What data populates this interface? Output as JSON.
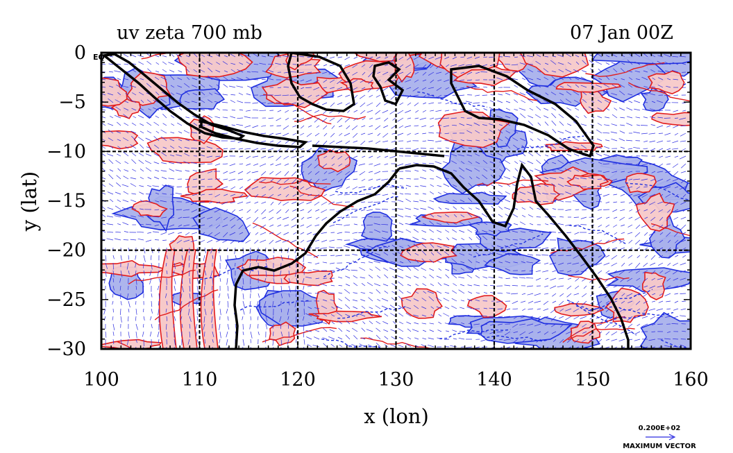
{
  "header": {
    "title": "uv zeta 700 mb",
    "time": "07 Jan 00Z"
  },
  "axes": {
    "xlabel": "x (lon)",
    "ylabel": "y (lat)",
    "xticks": [
      "100",
      "110",
      "120",
      "130",
      "140",
      "150",
      "160"
    ],
    "yticks": [
      "0",
      "−5",
      "−10",
      "−15",
      "−20",
      "−25",
      "−30"
    ],
    "xlim": [
      100,
      160
    ],
    "ylim": [
      -30,
      0
    ],
    "grid_lon": [
      110,
      120,
      130,
      140,
      150
    ],
    "grid_lat": [
      -10,
      -20
    ]
  },
  "corner_label": "EQ",
  "legend": {
    "vector_value": "0.200E+02",
    "vector_label": "MAXIMUM VECTOR"
  },
  "colors": {
    "positive_fill": "#f7c9c9",
    "positive_line": "#e21b1b",
    "negative_fill": "#a9b1ec",
    "negative_line": "#1d2ee0",
    "coast": "#000000",
    "vector": "#2a2ae0"
  },
  "chart_data": {
    "type": "map",
    "layers": [
      "vorticity contours (positive/negative)",
      "wind vectors",
      "coastlines"
    ],
    "level": "700 mb",
    "fields": [
      "u",
      "v",
      "zeta"
    ]
  }
}
